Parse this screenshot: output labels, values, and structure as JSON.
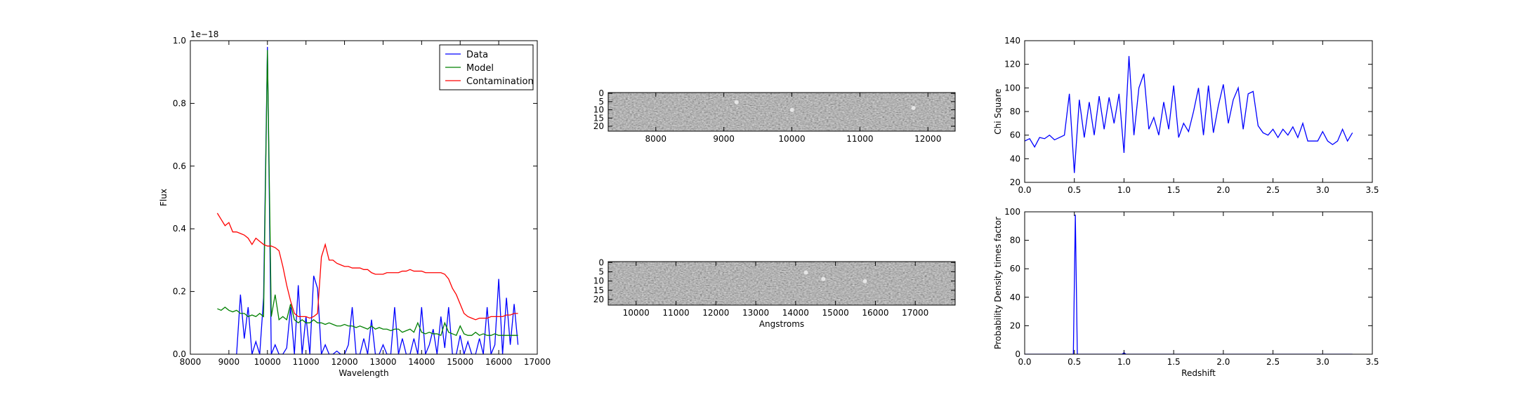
{
  "chart_data": [
    {
      "type": "line",
      "xlabel": "Wavelength",
      "ylabel": "Flux",
      "offset_text": "1e−18",
      "xlim": [
        8000,
        17000
      ],
      "xticks": [
        8000,
        9000,
        10000,
        11000,
        12000,
        13000,
        14000,
        15000,
        16000,
        17000
      ],
      "ylim": [
        0,
        1.0
      ],
      "yticks": [
        {
          "value": 0,
          "label": "0.0"
        },
        {
          "value": 0.2,
          "label": "0.2"
        },
        {
          "value": 0.4,
          "label": "0.4"
        },
        {
          "value": 0.6,
          "label": "0.6"
        },
        {
          "value": 0.8,
          "label": "0.8"
        },
        {
          "value": 1.0,
          "label": "1.0"
        }
      ],
      "legend": "upper right",
      "x": [
        8700,
        8800,
        8900,
        9000,
        9100,
        9200,
        9300,
        9400,
        9500,
        9600,
        9700,
        9800,
        9900,
        10000,
        10100,
        10200,
        10300,
        10400,
        10500,
        10600,
        10700,
        10800,
        10900,
        11000,
        11100,
        11200,
        11300,
        11400,
        11500,
        11600,
        11700,
        11800,
        11900,
        12000,
        12100,
        12200,
        12300,
        12400,
        12500,
        12600,
        12700,
        12800,
        12900,
        13000,
        13100,
        13200,
        13300,
        13400,
        13500,
        13600,
        13700,
        13800,
        13900,
        14000,
        14100,
        14200,
        14300,
        14400,
        14500,
        14600,
        14700,
        14800,
        14900,
        15000,
        15100,
        15200,
        15300,
        15400,
        15500,
        15600,
        15700,
        15800,
        15900,
        16000,
        16100,
        16200,
        16300,
        16400,
        16500
      ],
      "series": [
        {
          "name": "Data",
          "color": "#0000ff",
          "values": [
            null,
            null,
            null,
            null,
            null,
            0,
            0.19,
            0.05,
            0.15,
            0,
            0.04,
            0,
            0.18,
            0.98,
            0,
            0.03,
            0,
            0,
            0.02,
            0.15,
            0,
            0.22,
            0,
            0.12,
            0,
            0.25,
            0.21,
            0,
            0.03,
            0,
            0,
            0.01,
            0,
            0,
            0.03,
            0.15,
            0,
            0,
            0.05,
            0,
            0.11,
            0,
            0,
            0.03,
            0,
            0,
            0.15,
            0,
            0.05,
            0,
            0,
            0.05,
            0,
            0.15,
            0,
            0.03,
            0.08,
            0,
            0.12,
            0.02,
            0.15,
            0,
            0,
            0.06,
            0,
            0.04,
            0,
            0,
            0.05,
            0,
            0.15,
            0,
            0.03,
            0.24,
            0,
            0.18,
            0.03,
            0.16,
            0.03
          ]
        },
        {
          "name": "Model",
          "color": "#008000",
          "values": [
            0.145,
            0.14,
            0.15,
            0.14,
            0.135,
            0.14,
            0.13,
            0.13,
            0.12,
            0.125,
            0.12,
            0.13,
            0.12,
            0.97,
            0.12,
            0.19,
            0.11,
            0.12,
            0.11,
            0.16,
            0.11,
            0.1,
            0.11,
            0.1,
            0.1,
            0.11,
            0.1,
            0.1,
            0.095,
            0.1,
            0.095,
            0.09,
            0.09,
            0.095,
            0.09,
            0.09,
            0.085,
            0.09,
            0.085,
            0.08,
            0.09,
            0.08,
            0.085,
            0.08,
            0.08,
            0.075,
            0.08,
            0.08,
            0.07,
            0.075,
            0.08,
            0.07,
            0.1,
            0.07,
            0.065,
            0.07,
            0.065,
            0.065,
            0.06,
            0.1,
            0.07,
            0.065,
            0.06,
            0.09,
            0.065,
            0.06,
            0.06,
            0.07,
            0.06,
            0.065,
            0.06,
            0.06,
            0.065,
            0.06,
            0.06,
            0.06,
            0.06,
            0.06,
            0.06
          ]
        },
        {
          "name": "Contamination",
          "color": "#ff0000",
          "values": [
            0.45,
            0.43,
            0.41,
            0.42,
            0.39,
            0.39,
            0.385,
            0.38,
            0.37,
            0.35,
            0.37,
            0.36,
            0.35,
            0.345,
            0.345,
            0.34,
            0.33,
            0.28,
            0.22,
            0.17,
            0.13,
            0.12,
            0.12,
            0.12,
            0.115,
            0.12,
            0.13,
            0.31,
            0.35,
            0.3,
            0.3,
            0.29,
            0.285,
            0.28,
            0.28,
            0.275,
            0.275,
            0.275,
            0.27,
            0.27,
            0.26,
            0.255,
            0.255,
            0.255,
            0.26,
            0.26,
            0.26,
            0.26,
            0.265,
            0.265,
            0.27,
            0.265,
            0.265,
            0.265,
            0.26,
            0.26,
            0.26,
            0.26,
            0.26,
            0.255,
            0.24,
            0.21,
            0.19,
            0.16,
            0.13,
            0.12,
            0.115,
            0.11,
            0.115,
            0.115,
            0.115,
            0.12,
            0.12,
            0.12,
            0.12,
            0.125,
            0.125,
            0.13,
            0.13
          ]
        }
      ]
    },
    {
      "type": "image",
      "xlim": [
        7300,
        12400
      ],
      "xticks": [
        8000,
        9000,
        10000,
        11000,
        12000
      ],
      "ylim": [
        23,
        -0.5
      ],
      "yticks": [
        0,
        5,
        10,
        15,
        20
      ]
    },
    {
      "type": "image",
      "xlabel": "Angstroms",
      "xlim": [
        9300,
        18000
      ],
      "xticks": [
        10000,
        11000,
        12000,
        13000,
        14000,
        15000,
        16000,
        17000
      ],
      "ylim": [
        23,
        -0.5
      ],
      "yticks": [
        0,
        5,
        10,
        15,
        20
      ]
    },
    {
      "type": "line",
      "ylabel": "Chi Square",
      "xlim": [
        0,
        3.5
      ],
      "xticks": [
        {
          "value": 0,
          "label": "0.0"
        },
        0.5,
        {
          "value": 1,
          "label": "1.0"
        },
        1.5,
        {
          "value": 2,
          "label": "2.0"
        },
        2.5,
        {
          "value": 3,
          "label": "3.0"
        },
        3.5
      ],
      "ylim": [
        20,
        140
      ],
      "yticks": [
        20,
        40,
        60,
        80,
        100,
        120,
        140
      ],
      "x": [
        0,
        0.05,
        0.1,
        0.15,
        0.2,
        0.25,
        0.3,
        0.35,
        0.4,
        0.45,
        0.5,
        0.55,
        0.6,
        0.65,
        0.7,
        0.75,
        0.8,
        0.85,
        0.9,
        0.95,
        1.0,
        1.05,
        1.1,
        1.15,
        1.2,
        1.25,
        1.3,
        1.35,
        1.4,
        1.45,
        1.5,
        1.55,
        1.6,
        1.65,
        1.7,
        1.75,
        1.8,
        1.85,
        1.9,
        1.95,
        2.0,
        2.05,
        2.1,
        2.15,
        2.2,
        2.25,
        2.3,
        2.35,
        2.4,
        2.45,
        2.5,
        2.55,
        2.6,
        2.65,
        2.7,
        2.75,
        2.8,
        2.85,
        2.9,
        2.95,
        3.0,
        3.05,
        3.1,
        3.15,
        3.2,
        3.25,
        3.3
      ],
      "series": [
        {
          "color": "#0000ff",
          "values": [
            55,
            57,
            50,
            58,
            57,
            60,
            56,
            58,
            60,
            95,
            28,
            90,
            58,
            88,
            60,
            93,
            65,
            92,
            70,
            95,
            45,
            127,
            60,
            100,
            112,
            65,
            75,
            60,
            88,
            65,
            102,
            58,
            70,
            63,
            80,
            100,
            60,
            102,
            62,
            85,
            103,
            70,
            90,
            100,
            65,
            95,
            97,
            68,
            62,
            60,
            65,
            58,
            65,
            60,
            67,
            58,
            70,
            55,
            55,
            55,
            63,
            55,
            52,
            55,
            65,
            55,
            62
          ]
        }
      ]
    },
    {
      "type": "line",
      "xlabel": "Redshift",
      "ylabel": "Probability Density times factor",
      "xlim": [
        0,
        3.5
      ],
      "xticks": [
        {
          "value": 0,
          "label": "0.0"
        },
        0.5,
        {
          "value": 1,
          "label": "1.0"
        },
        1.5,
        {
          "value": 2,
          "label": "2.0"
        },
        2.5,
        {
          "value": 3,
          "label": "3.0"
        },
        3.5
      ],
      "ylim": [
        0,
        100
      ],
      "yticks": [
        0,
        20,
        40,
        60,
        80,
        100
      ],
      "x": [
        0,
        0.45,
        0.49,
        0.51,
        0.53,
        0.57,
        0.98,
        1.0,
        1.02,
        3.3
      ],
      "series": [
        {
          "color": "#0000ff",
          "values": [
            0,
            0,
            0,
            98,
            0,
            0,
            0,
            1,
            0,
            0
          ]
        }
      ]
    }
  ]
}
